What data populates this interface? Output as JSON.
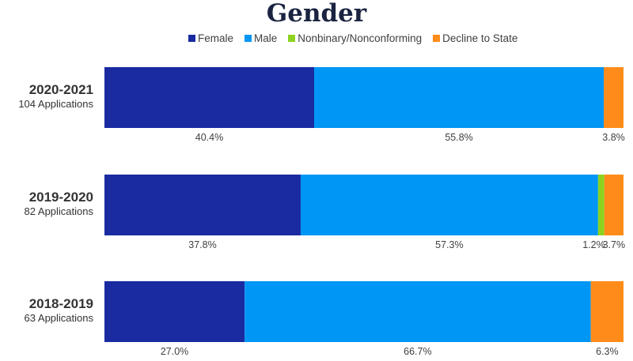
{
  "chart_data": {
    "type": "bar",
    "orientation": "horizontal-stacked-100",
    "title": "Gender",
    "legend_position": "top",
    "categories": [
      "2020-2021",
      "2019-2020",
      "2018-2019"
    ],
    "category_subtitles": [
      "104 Applications",
      "82 Applications",
      "63 Applications"
    ],
    "series": [
      {
        "name": "Female",
        "color": "#1a2aa0",
        "values": [
          40.4,
          37.8,
          27.0
        ],
        "labels": [
          "40.4%",
          "37.8%",
          "27.0%"
        ]
      },
      {
        "name": "Male",
        "color": "#0096f5",
        "values": [
          55.8,
          57.3,
          66.7
        ],
        "labels": [
          "55.8%",
          "57.3%",
          "66.7%"
        ]
      },
      {
        "name": "Nonbinary/Nonconforming",
        "color": "#8ed21f",
        "values": [
          0,
          1.2,
          0
        ],
        "labels": [
          "",
          "1.2%",
          ""
        ]
      },
      {
        "name": "Decline to State",
        "color": "#ff8c1a",
        "values": [
          3.8,
          3.7,
          6.3
        ],
        "labels": [
          "3.8%",
          "3.7%",
          "6.3%"
        ]
      }
    ],
    "xlim": [
      0,
      100
    ]
  }
}
